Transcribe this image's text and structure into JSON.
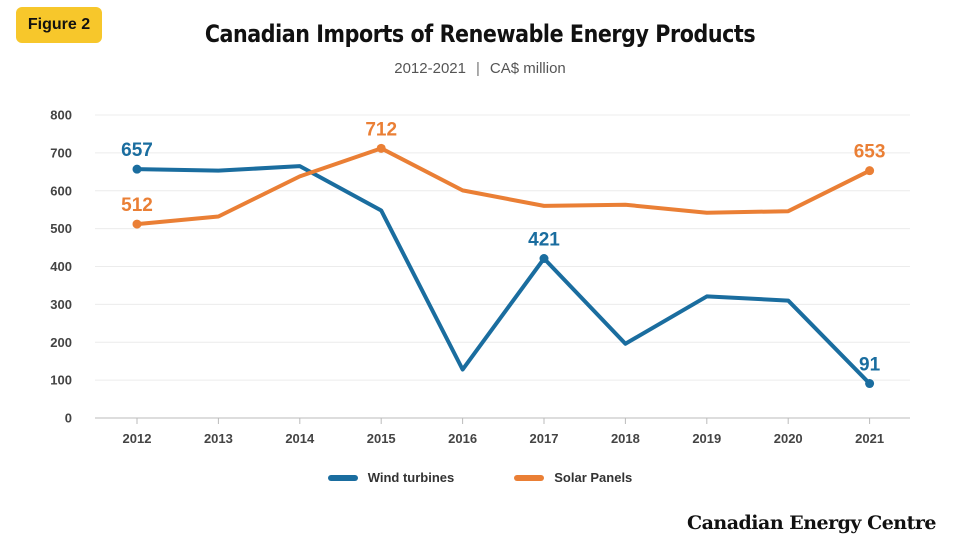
{
  "badge": "Figure 2",
  "brand": "Canadian Energy Centre",
  "colors": {
    "wind": "#1a6d9f",
    "solar": "#ea7f35",
    "badge": "#f7c72b"
  },
  "chart_data": {
    "type": "line",
    "title": "Canadian Imports of Renewable Energy Products",
    "subtitle_range": "2012-2021",
    "subtitle_unit": "CA$ million",
    "x": [
      "2012",
      "2013",
      "2014",
      "2015",
      "2016",
      "2017",
      "2018",
      "2019",
      "2020",
      "2021"
    ],
    "yticks": [
      "0",
      "100",
      "200",
      "300",
      "400",
      "500",
      "600",
      "700",
      "800"
    ],
    "ylim": [
      0,
      800
    ],
    "grid": true,
    "legend_position": "bottom",
    "series": [
      {
        "name": "Wind turbines",
        "color": "#1a6d9f",
        "values": [
          657,
          653,
          665,
          548,
          128,
          421,
          196,
          321,
          310,
          91
        ],
        "labels": [
          {
            "index": 0,
            "text": "657"
          },
          {
            "index": 5,
            "text": "421"
          },
          {
            "index": 9,
            "text": "91"
          }
        ]
      },
      {
        "name": "Solar Panels",
        "color": "#ea7f35",
        "values": [
          512,
          532,
          638,
          712,
          601,
          560,
          563,
          542,
          546,
          653
        ],
        "labels": [
          {
            "index": 0,
            "text": "512"
          },
          {
            "index": 3,
            "text": "712"
          },
          {
            "index": 9,
            "text": "653"
          }
        ]
      }
    ]
  }
}
